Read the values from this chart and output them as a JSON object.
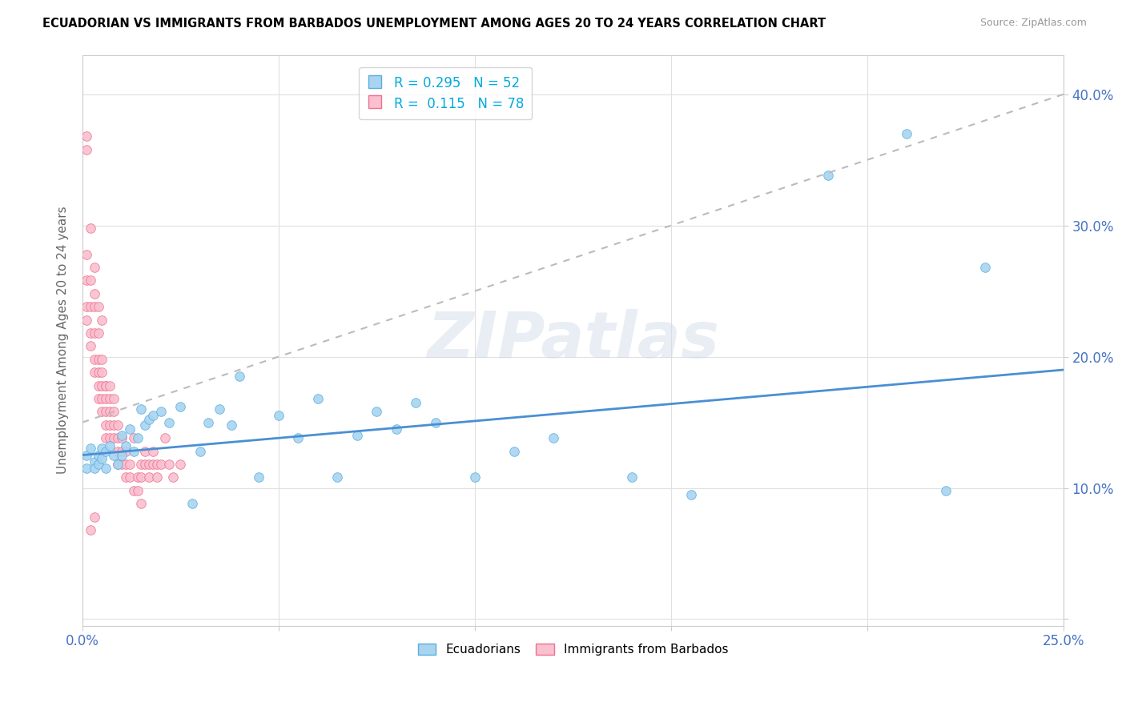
{
  "title": "ECUADORIAN VS IMMIGRANTS FROM BARBADOS UNEMPLOYMENT AMONG AGES 20 TO 24 YEARS CORRELATION CHART",
  "source": "Source: ZipAtlas.com",
  "ylabel": "Unemployment Among Ages 20 to 24 years",
  "xlim": [
    0.0,
    0.25
  ],
  "ylim": [
    -0.005,
    0.43
  ],
  "x_ticks": [
    0.0,
    0.05,
    0.1,
    0.15,
    0.2,
    0.25
  ],
  "x_tick_labels": [
    "0.0%",
    "",
    "",
    "",
    "",
    "25.0%"
  ],
  "y_ticks": [
    0.0,
    0.1,
    0.2,
    0.3,
    0.4
  ],
  "y_tick_labels": [
    "",
    "10.0%",
    "20.0%",
    "30.0%",
    "40.0%"
  ],
  "legend_r1": "R = 0.295",
  "legend_n1": "N = 52",
  "legend_r2": "R =  0.115",
  "legend_n2": "N = 78",
  "blue_scatter_color": "#A8D4F0",
  "blue_edge_color": "#5BAEE0",
  "pink_scatter_color": "#F9C0CF",
  "pink_edge_color": "#F07090",
  "blue_line_color": "#4A8FD4",
  "gray_line_color": "#BBBBBB",
  "watermark": "ZIPatlas",
  "ecuadorians_x": [
    0.001,
    0.001,
    0.002,
    0.003,
    0.003,
    0.004,
    0.004,
    0.005,
    0.005,
    0.006,
    0.006,
    0.007,
    0.008,
    0.009,
    0.01,
    0.01,
    0.011,
    0.012,
    0.013,
    0.014,
    0.015,
    0.016,
    0.017,
    0.018,
    0.02,
    0.022,
    0.025,
    0.028,
    0.03,
    0.032,
    0.035,
    0.038,
    0.04,
    0.045,
    0.05,
    0.055,
    0.06,
    0.065,
    0.07,
    0.075,
    0.08,
    0.085,
    0.09,
    0.1,
    0.11,
    0.12,
    0.14,
    0.155,
    0.19,
    0.21,
    0.22,
    0.23
  ],
  "ecuadorians_y": [
    0.125,
    0.115,
    0.13,
    0.12,
    0.115,
    0.125,
    0.118,
    0.13,
    0.122,
    0.128,
    0.115,
    0.132,
    0.125,
    0.118,
    0.14,
    0.125,
    0.132,
    0.145,
    0.128,
    0.138,
    0.16,
    0.148,
    0.152,
    0.155,
    0.158,
    0.15,
    0.162,
    0.088,
    0.128,
    0.15,
    0.16,
    0.148,
    0.185,
    0.108,
    0.155,
    0.138,
    0.168,
    0.108,
    0.14,
    0.158,
    0.145,
    0.165,
    0.15,
    0.108,
    0.128,
    0.138,
    0.108,
    0.095,
    0.338,
    0.37,
    0.098,
    0.268
  ],
  "barbados_x": [
    0.001,
    0.001,
    0.001,
    0.001,
    0.002,
    0.002,
    0.002,
    0.002,
    0.003,
    0.003,
    0.003,
    0.003,
    0.003,
    0.004,
    0.004,
    0.004,
    0.004,
    0.004,
    0.005,
    0.005,
    0.005,
    0.005,
    0.006,
    0.006,
    0.006,
    0.006,
    0.006,
    0.007,
    0.007,
    0.007,
    0.007,
    0.008,
    0.008,
    0.008,
    0.009,
    0.009,
    0.009,
    0.009,
    0.01,
    0.01,
    0.01,
    0.011,
    0.011,
    0.011,
    0.012,
    0.012,
    0.013,
    0.013,
    0.014,
    0.014,
    0.015,
    0.015,
    0.015,
    0.016,
    0.016,
    0.017,
    0.017,
    0.018,
    0.018,
    0.019,
    0.019,
    0.02,
    0.021,
    0.022,
    0.023,
    0.025,
    0.001,
    0.002,
    0.002,
    0.003,
    0.003,
    0.004,
    0.005,
    0.005,
    0.006,
    0.007,
    0.008,
    0.001
  ],
  "barbados_y": [
    0.278,
    0.258,
    0.238,
    0.228,
    0.258,
    0.238,
    0.218,
    0.208,
    0.238,
    0.218,
    0.198,
    0.188,
    0.078,
    0.218,
    0.198,
    0.188,
    0.178,
    0.168,
    0.198,
    0.178,
    0.168,
    0.158,
    0.178,
    0.168,
    0.158,
    0.148,
    0.138,
    0.168,
    0.158,
    0.148,
    0.138,
    0.158,
    0.148,
    0.138,
    0.148,
    0.138,
    0.128,
    0.118,
    0.138,
    0.128,
    0.118,
    0.128,
    0.118,
    0.108,
    0.118,
    0.108,
    0.098,
    0.138,
    0.108,
    0.098,
    0.088,
    0.118,
    0.108,
    0.128,
    0.118,
    0.118,
    0.108,
    0.128,
    0.118,
    0.118,
    0.108,
    0.118,
    0.138,
    0.118,
    0.108,
    0.118,
    0.358,
    0.298,
    0.068,
    0.268,
    0.248,
    0.238,
    0.228,
    0.188,
    0.178,
    0.178,
    0.168,
    0.368
  ]
}
